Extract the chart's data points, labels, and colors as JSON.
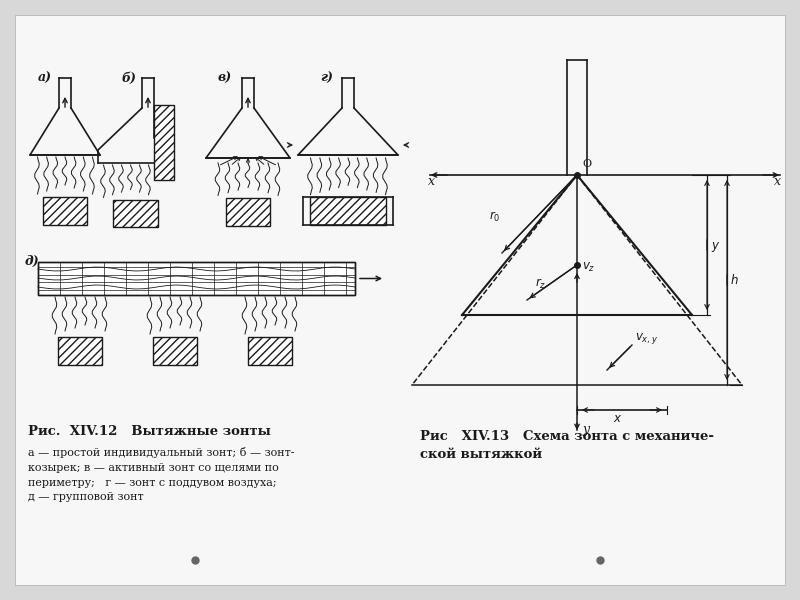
{
  "bg_color": "#d8d8d8",
  "panel_color": "#f5f5f5",
  "line_color": "#1a1a1a",
  "title_left": "Рис.  XIV.12   Вытяжные зонты",
  "caption_left": "а — простой индивидуальный зонт; б — зонт-\nкозырек; в — активный зонт со щелями по\nпериметру;   г — зонт с поддувом воздуха;\nд — групповой зонт",
  "title_right": "Рис   XIV.13   Схема зонта с механиче-\nской вытяжкой"
}
